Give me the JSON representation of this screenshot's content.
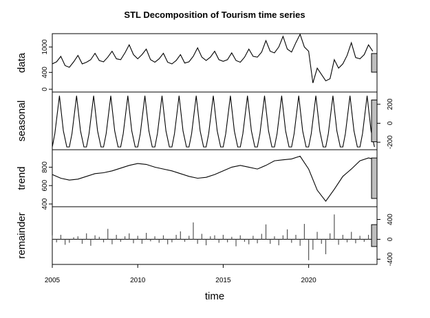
{
  "chart_data": {
    "type": "line",
    "title": "STL Decomposition of Tourism time series",
    "xlabel": "time",
    "xlim": [
      2005,
      2024
    ],
    "x_ticks": [
      "2005",
      "2010",
      "2015",
      "2020"
    ],
    "panels": [
      {
        "name": "data",
        "ylabel": "data",
        "ylim": [
          0,
          1250
        ],
        "y_ticks": [
          "0",
          "400",
          "1000"
        ],
        "y_tick_values": [
          0,
          400,
          1000
        ],
        "axis_side": "left",
        "kind": "line",
        "x": [
          2005,
          2005.25,
          2005.5,
          2005.75,
          2006,
          2006.25,
          2006.5,
          2006.75,
          2007,
          2007.25,
          2007.5,
          2007.75,
          2008,
          2008.25,
          2008.5,
          2008.75,
          2009,
          2009.25,
          2009.5,
          2009.75,
          2010,
          2010.25,
          2010.5,
          2010.75,
          2011,
          2011.25,
          2011.5,
          2011.75,
          2012,
          2012.25,
          2012.5,
          2012.75,
          2013,
          2013.25,
          2013.5,
          2013.75,
          2014,
          2014.25,
          2014.5,
          2014.75,
          2015,
          2015.25,
          2015.5,
          2015.75,
          2016,
          2016.25,
          2016.5,
          2016.75,
          2017,
          2017.25,
          2017.5,
          2017.75,
          2018,
          2018.25,
          2018.5,
          2018.75,
          2019,
          2019.25,
          2019.5,
          2019.75,
          2020,
          2020.25,
          2020.5,
          2020.75,
          2021,
          2021.25,
          2021.5,
          2021.75,
          2022,
          2022.25,
          2022.5,
          2022.75,
          2023,
          2023.25,
          2023.5,
          2023.75
        ],
        "values": [
          600,
          650,
          780,
          560,
          520,
          650,
          800,
          600,
          640,
          700,
          850,
          680,
          650,
          760,
          900,
          720,
          700,
          860,
          1050,
          820,
          720,
          820,
          950,
          700,
          640,
          720,
          850,
          640,
          600,
          680,
          820,
          620,
          650,
          780,
          980,
          760,
          680,
          760,
          900,
          700,
          660,
          700,
          860,
          680,
          640,
          760,
          950,
          780,
          760,
          880,
          1150,
          900,
          860,
          1000,
          1250,
          950,
          880,
          1100,
          1300,
          1000,
          900,
          150,
          500,
          350,
          200,
          250,
          700,
          500,
          600,
          800,
          1100,
          750,
          720,
          820,
          1050,
          900
        ],
        "color": "#000000"
      },
      {
        "name": "seasonal",
        "ylabel": "seasonal",
        "ylim": [
          -250,
          300
        ],
        "y_ticks": [
          "-200",
          "0",
          "200"
        ],
        "y_tick_values": [
          -200,
          0,
          200
        ],
        "axis_side": "right",
        "kind": "seasonal",
        "pattern_x_offsets": [
          0,
          0.15,
          0.42,
          0.65,
          0.85
        ],
        "pattern_values": [
          -250,
          -110,
          290,
          -80,
          -250
        ],
        "period": 1,
        "color": "#000000"
      },
      {
        "name": "trend",
        "ylabel": "trend",
        "ylim": [
          400,
          960
        ],
        "y_ticks": [
          "400",
          "600",
          "800"
        ],
        "y_tick_values": [
          400,
          600,
          800
        ],
        "axis_side": "left",
        "kind": "line",
        "x": [
          2005,
          2005.5,
          2006,
          2006.5,
          2007,
          2007.5,
          2008,
          2008.5,
          2009,
          2009.5,
          2010,
          2010.5,
          2011,
          2011.5,
          2012,
          2012.5,
          2013,
          2013.5,
          2014,
          2014.5,
          2015,
          2015.5,
          2016,
          2016.5,
          2017,
          2017.5,
          2018,
          2018.5,
          2019,
          2019.5,
          2020,
          2020.5,
          2021,
          2021.5,
          2022,
          2022.5,
          2023,
          2023.5,
          2024
        ],
        "values": [
          720,
          680,
          660,
          670,
          700,
          730,
          740,
          760,
          790,
          820,
          840,
          830,
          800,
          780,
          760,
          730,
          700,
          680,
          690,
          720,
          760,
          800,
          820,
          800,
          780,
          820,
          870,
          880,
          890,
          920,
          780,
          550,
          430,
          560,
          700,
          780,
          870,
          900,
          880
        ],
        "color": "#000000"
      },
      {
        "name": "remainder",
        "ylabel": "remainder",
        "ylim": [
          -450,
          600
        ],
        "y_ticks": [
          "-400",
          "0",
          "400"
        ],
        "y_tick_values": [
          -400,
          0,
          400
        ],
        "axis_side": "right",
        "kind": "bar",
        "x": [
          2005,
          2005.25,
          2005.5,
          2005.75,
          2006,
          2006.25,
          2006.5,
          2006.75,
          2007,
          2007.25,
          2007.5,
          2007.75,
          2008,
          2008.25,
          2008.5,
          2008.75,
          2009,
          2009.25,
          2009.5,
          2009.75,
          2010,
          2010.25,
          2010.5,
          2010.75,
          2011,
          2011.25,
          2011.5,
          2011.75,
          2012,
          2012.25,
          2012.5,
          2012.75,
          2013,
          2013.25,
          2013.5,
          2013.75,
          2014,
          2014.25,
          2014.5,
          2014.75,
          2015,
          2015.25,
          2015.5,
          2015.75,
          2016,
          2016.25,
          2016.5,
          2016.75,
          2017,
          2017.25,
          2017.5,
          2017.75,
          2018,
          2018.25,
          2018.5,
          2018.75,
          2019,
          2019.25,
          2019.5,
          2019.75,
          2020,
          2020.25,
          2020.5,
          2020.75,
          2021,
          2021.25,
          2021.5,
          2021.75,
          2022,
          2022.25,
          2022.5,
          2022.75,
          2023,
          2023.25,
          2023.5,
          2023.75
        ],
        "values": [
          80,
          -60,
          90,
          -110,
          -70,
          40,
          60,
          -90,
          120,
          -130,
          80,
          50,
          -60,
          210,
          -100,
          90,
          -50,
          60,
          120,
          -80,
          70,
          -90,
          130,
          -40,
          60,
          -70,
          80,
          -100,
          -60,
          90,
          160,
          -50,
          70,
          340,
          -90,
          110,
          -120,
          60,
          80,
          -70,
          90,
          -60,
          50,
          -140,
          80,
          -50,
          -100,
          70,
          -80,
          110,
          300,
          -90,
          60,
          -120,
          80,
          200,
          -70,
          90,
          -130,
          310,
          -420,
          -210,
          150,
          -90,
          -300,
          120,
          500,
          -110,
          90,
          -60,
          150,
          -80,
          70,
          -50,
          90,
          -120
        ]
      }
    ],
    "scale_bar_color": "#bebebe"
  }
}
